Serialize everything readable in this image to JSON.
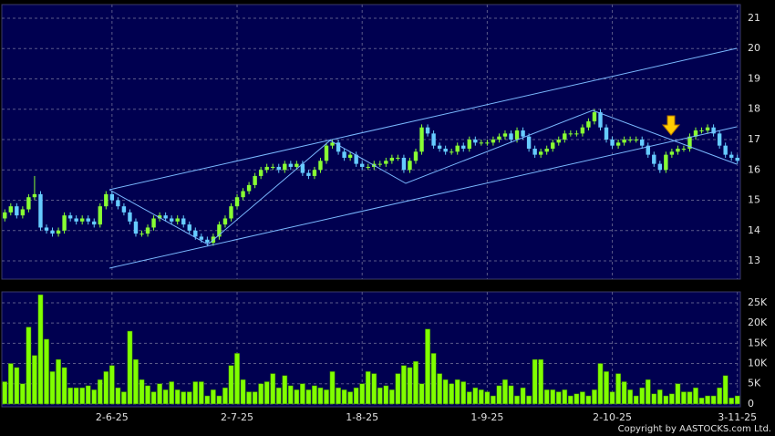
{
  "chart_data": [
    {
      "type": "candlestick",
      "up_color": "#88ff33",
      "down_color": "#66ccff",
      "grid": true,
      "ylim": [
        12.4,
        21.45
      ],
      "yticks": [
        13,
        14,
        15,
        16,
        17,
        18,
        19,
        20,
        21
      ],
      "open": [
        14.4,
        14.6,
        14.8,
        14.5,
        14.7,
        15.1,
        15.2,
        14.1,
        14.0,
        13.9,
        14.0,
        14.5,
        14.4,
        14.3,
        14.4,
        14.3,
        14.2,
        14.8,
        15.2,
        15.0,
        14.8,
        14.6,
        14.3,
        13.9,
        13.9,
        14.1,
        14.4,
        14.5,
        14.4,
        14.3,
        14.4,
        14.2,
        14.0,
        13.8,
        13.7,
        13.6,
        13.8,
        14.2,
        14.4,
        14.8,
        15.1,
        15.3,
        15.5,
        15.8,
        16.0,
        16.1,
        16.1,
        16.0,
        16.2,
        16.1,
        16.2,
        15.9,
        15.8,
        16.0,
        16.3,
        16.8,
        16.9,
        16.6,
        16.4,
        16.5,
        16.2,
        16.1,
        16.1,
        16.2,
        16.2,
        16.3,
        16.4,
        16.4,
        16.0,
        16.3,
        16.6,
        17.4,
        17.2,
        16.8,
        16.7,
        16.6,
        16.6,
        16.8,
        16.7,
        17.0,
        16.9,
        16.9,
        16.9,
        17.0,
        17.1,
        17.2,
        17.0,
        17.3,
        17.1,
        16.7,
        16.5,
        16.6,
        16.7,
        16.9,
        17.0,
        17.2,
        17.2,
        17.2,
        17.4,
        17.6,
        17.9,
        17.4,
        17.0,
        16.8,
        16.9,
        17.0,
        17.0,
        17.0,
        16.8,
        16.5,
        16.2,
        16.0,
        16.5,
        16.6,
        16.7,
        16.7,
        17.1,
        17.3,
        17.3,
        17.4,
        17.2,
        16.8,
        16.5,
        16.4
      ],
      "high": [
        14.7,
        14.9,
        14.9,
        14.8,
        15.2,
        15.8,
        15.3,
        14.2,
        14.1,
        14.1,
        14.6,
        14.6,
        14.5,
        14.5,
        14.5,
        14.4,
        14.9,
        15.3,
        15.3,
        15.1,
        14.9,
        14.7,
        14.4,
        14.0,
        14.2,
        14.5,
        14.6,
        14.6,
        14.5,
        14.5,
        14.5,
        14.3,
        14.1,
        13.9,
        13.8,
        13.9,
        14.3,
        14.5,
        14.9,
        15.2,
        15.4,
        15.6,
        15.9,
        16.1,
        16.2,
        16.2,
        16.2,
        16.3,
        16.3,
        16.3,
        16.3,
        16.0,
        16.1,
        16.4,
        16.9,
        17.0,
        17.0,
        16.7,
        16.6,
        16.6,
        16.3,
        16.2,
        16.3,
        16.3,
        16.4,
        16.5,
        16.5,
        16.5,
        16.4,
        16.7,
        17.5,
        17.5,
        17.3,
        16.9,
        16.8,
        16.7,
        16.9,
        16.9,
        17.1,
        17.1,
        17.0,
        17.0,
        17.1,
        17.2,
        17.3,
        17.3,
        17.4,
        17.4,
        17.2,
        16.8,
        16.7,
        16.8,
        17.0,
        17.1,
        17.3,
        17.3,
        17.3,
        17.5,
        17.7,
        18.0,
        18.0,
        17.5,
        17.1,
        17.0,
        17.1,
        17.1,
        17.1,
        17.1,
        16.9,
        16.6,
        16.3,
        16.6,
        16.7,
        16.8,
        16.8,
        17.2,
        17.4,
        17.4,
        17.5,
        17.5,
        17.3,
        16.9,
        16.6,
        16.5
      ],
      "low": [
        14.3,
        14.5,
        14.4,
        14.4,
        14.6,
        15.0,
        14.0,
        13.9,
        13.8,
        13.8,
        13.9,
        14.3,
        14.2,
        14.2,
        14.2,
        14.1,
        14.1,
        14.7,
        14.9,
        14.7,
        14.5,
        14.2,
        13.8,
        13.8,
        13.8,
        14.0,
        14.3,
        14.3,
        14.2,
        14.2,
        14.1,
        13.9,
        13.7,
        13.6,
        13.5,
        13.5,
        13.7,
        14.1,
        14.3,
        14.7,
        15.0,
        15.2,
        15.4,
        15.7,
        15.9,
        16.0,
        15.9,
        15.9,
        16.0,
        16.0,
        15.8,
        15.7,
        15.7,
        15.9,
        16.2,
        16.7,
        16.5,
        16.3,
        16.3,
        16.1,
        16.0,
        16.0,
        16.0,
        16.1,
        16.1,
        16.2,
        16.3,
        15.9,
        15.9,
        16.2,
        16.5,
        17.1,
        16.7,
        16.6,
        16.5,
        16.5,
        16.5,
        16.6,
        16.6,
        16.8,
        16.8,
        16.8,
        16.8,
        16.9,
        17.0,
        16.9,
        16.9,
        17.0,
        16.6,
        16.4,
        16.4,
        16.5,
        16.6,
        16.8,
        16.9,
        17.1,
        17.1,
        17.1,
        17.3,
        17.5,
        17.3,
        16.9,
        16.7,
        16.7,
        16.8,
        16.9,
        16.9,
        16.7,
        16.4,
        16.1,
        15.9,
        15.9,
        16.4,
        16.5,
        16.6,
        16.6,
        17.0,
        17.2,
        17.2,
        17.1,
        16.7,
        16.4,
        16.3,
        16.2
      ],
      "close": [
        14.6,
        14.8,
        14.5,
        14.7,
        15.1,
        15.2,
        14.1,
        14.0,
        13.9,
        14.0,
        14.5,
        14.4,
        14.3,
        14.4,
        14.3,
        14.2,
        14.8,
        15.2,
        15.0,
        14.8,
        14.6,
        14.3,
        13.9,
        13.9,
        14.1,
        14.4,
        14.5,
        14.4,
        14.3,
        14.4,
        14.2,
        14.0,
        13.8,
        13.7,
        13.6,
        13.8,
        14.2,
        14.4,
        14.8,
        15.1,
        15.3,
        15.5,
        15.8,
        16.0,
        16.1,
        16.1,
        16.0,
        16.2,
        16.1,
        16.2,
        15.9,
        15.8,
        16.0,
        16.3,
        16.8,
        16.9,
        16.6,
        16.4,
        16.5,
        16.2,
        16.1,
        16.1,
        16.2,
        16.2,
        16.3,
        16.4,
        16.4,
        16.0,
        16.3,
        16.6,
        17.4,
        17.2,
        16.8,
        16.7,
        16.6,
        16.6,
        16.8,
        16.7,
        17.0,
        16.9,
        16.9,
        16.9,
        17.0,
        17.1,
        17.2,
        17.0,
        17.3,
        17.1,
        16.7,
        16.5,
        16.6,
        16.7,
        16.9,
        17.0,
        17.2,
        17.2,
        17.2,
        17.4,
        17.6,
        17.9,
        17.4,
        17.0,
        16.8,
        16.9,
        17.0,
        17.0,
        17.0,
        16.8,
        16.5,
        16.2,
        16.0,
        16.5,
        16.6,
        16.7,
        16.7,
        17.1,
        17.3,
        17.3,
        17.4,
        17.2,
        16.8,
        16.5,
        16.4,
        16.3
      ]
    },
    {
      "type": "bar",
      "color": "#80ff00",
      "grid": true,
      "ylim": [
        -700,
        27700
      ],
      "yticks": [
        0,
        {
          "value": 5000,
          "label": "5K"
        },
        {
          "value": 10000,
          "label": "10K"
        },
        {
          "value": 15000,
          "label": "15K"
        },
        {
          "value": 20000,
          "label": "20K"
        },
        {
          "value": 25000,
          "label": "25K"
        }
      ],
      "categories": [
        null,
        null,
        null,
        null,
        null,
        null,
        null,
        null,
        null,
        null,
        null,
        null,
        null,
        null,
        null,
        null,
        null,
        null,
        "2-6-25",
        null,
        null,
        null,
        null,
        null,
        null,
        null,
        null,
        null,
        null,
        null,
        null,
        null,
        null,
        null,
        null,
        null,
        null,
        null,
        null,
        "2-7-25",
        null,
        null,
        null,
        null,
        null,
        null,
        null,
        null,
        null,
        null,
        null,
        null,
        null,
        null,
        null,
        null,
        null,
        null,
        null,
        null,
        "1-8-25",
        null,
        null,
        null,
        null,
        null,
        null,
        null,
        null,
        null,
        null,
        null,
        null,
        null,
        null,
        null,
        null,
        null,
        null,
        null,
        null,
        "1-9-25",
        null,
        null,
        null,
        null,
        null,
        null,
        null,
        null,
        null,
        null,
        null,
        null,
        null,
        null,
        null,
        null,
        null,
        null,
        null,
        null,
        "2-10-25",
        null,
        null,
        null,
        null,
        null,
        null,
        null,
        null,
        null,
        null,
        null,
        null,
        null,
        null,
        null,
        null,
        null,
        null,
        null,
        null,
        "3-11-25"
      ],
      "values": [
        5500,
        10000,
        9000,
        5000,
        19000,
        12000,
        27000,
        16000,
        8000,
        11000,
        9000,
        4000,
        4000,
        4000,
        4500,
        3500,
        6000,
        8000,
        9500,
        4000,
        3000,
        18000,
        11000,
        6000,
        4500,
        3000,
        5000,
        3500,
        5500,
        3500,
        3000,
        3000,
        5500,
        5500,
        2000,
        3500,
        2000,
        4000,
        9500,
        12500,
        6000,
        3000,
        3000,
        5000,
        5500,
        7500,
        4000,
        7000,
        4500,
        3500,
        5000,
        3500,
        4500,
        4000,
        3500,
        8000,
        4000,
        3500,
        3000,
        4000,
        5000,
        8000,
        7500,
        4000,
        4500,
        3500,
        7500,
        9500,
        9000,
        10500,
        5000,
        18500,
        12500,
        7500,
        6000,
        5000,
        6000,
        5500,
        3000,
        4000,
        3500,
        3000,
        2000,
        4500,
        6000,
        4500,
        2000,
        4000,
        2000,
        11000,
        11000,
        3500,
        3500,
        3000,
        3500,
        2000,
        2500,
        3000,
        2000,
        3500,
        10000,
        8000,
        3000,
        7500,
        5500,
        3500,
        2000,
        4000,
        6000,
        2500,
        3500,
        2000,
        2500,
        5000,
        3000,
        3000,
        4000,
        1500,
        2000,
        2000,
        4000,
        7000,
        1500,
        2000
      ]
    }
  ],
  "copyright": "Copyright by AASTOCKS.com Ltd."
}
